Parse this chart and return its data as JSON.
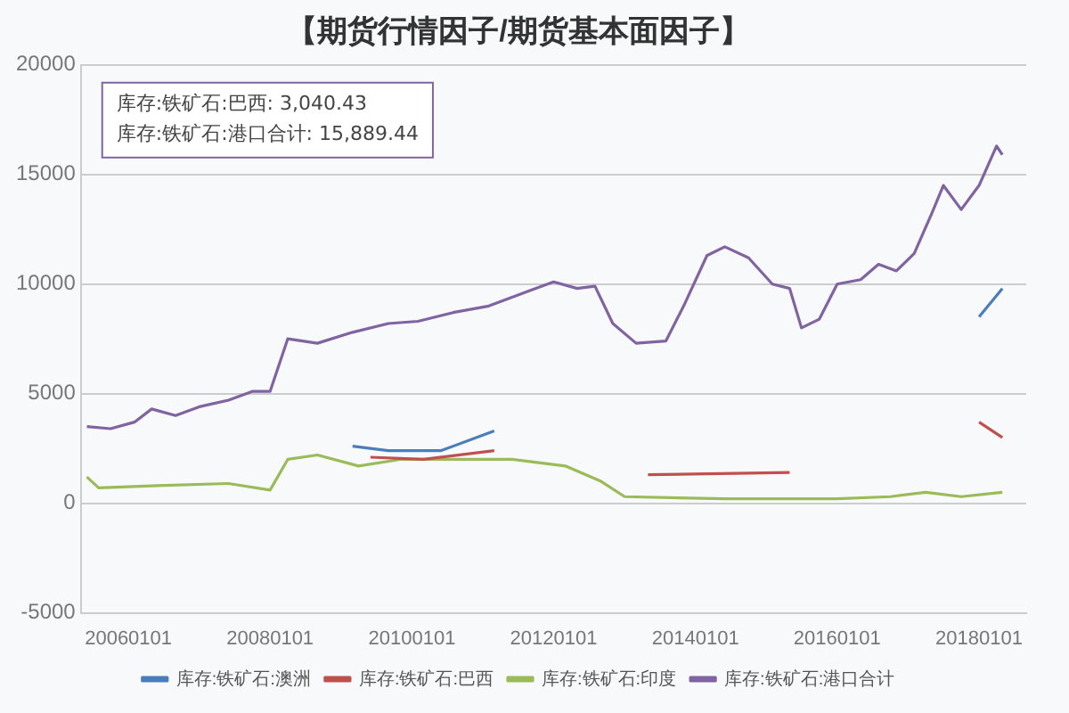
{
  "chart_data": {
    "type": "line",
    "title": "【期货行情因子/期货基本面因子】",
    "annotations": [
      "库存:铁矿石:巴西: 3,040.43",
      "库存:铁矿石:港口合计: 15,889.44"
    ],
    "xlim": [
      "2005-05-01",
      "2018-09-01"
    ],
    "xticks": [
      {
        "value": "2006-01-01",
        "label": "20060101"
      },
      {
        "value": "2008-01-01",
        "label": "20080101"
      },
      {
        "value": "2010-01-01",
        "label": "20100101"
      },
      {
        "value": "2012-01-01",
        "label": "20120101"
      },
      {
        "value": "2014-01-01",
        "label": "20140101"
      },
      {
        "value": "2016-01-01",
        "label": "20160101"
      },
      {
        "value": "2018-01-01",
        "label": "20180101"
      }
    ],
    "ylim": [
      -5000,
      20000
    ],
    "yticks": [
      -5000,
      0,
      5000,
      10000,
      15000,
      20000
    ],
    "grid": "y",
    "legend": "bottom",
    "line_style": "solid",
    "series": [
      {
        "name": "库存:铁矿石:澳洲",
        "color": "#4a7ebb",
        "x": [
          "2009-03",
          "2009-09",
          "2010-06",
          "2011-03",
          "2011-06",
          "2017-12",
          "2018-01",
          "2018-05"
        ],
        "values": [
          2600,
          2400,
          2400,
          3300,
          null,
          null,
          8500,
          9800
        ]
      },
      {
        "name": "库存:铁矿石:巴西",
        "color": "#c0504d",
        "x": [
          "2009-06",
          "2010-03",
          "2011-03",
          "2012-06",
          "2013-05",
          "2015-05",
          "2016-06",
          "2018-01",
          "2018-05"
        ],
        "values": [
          2100,
          2000,
          2400,
          null,
          1300,
          1400,
          null,
          3700,
          3000
        ]
      },
      {
        "name": "库存:铁矿石:印度",
        "color": "#9bbb59",
        "x": [
          "2005-06",
          "2005-08",
          "2006-06",
          "2007-06",
          "2008-01",
          "2008-04",
          "2008-09",
          "2009-04",
          "2009-11",
          "2011-06",
          "2012-03",
          "2012-09",
          "2013-01",
          "2014-06",
          "2016-01",
          "2016-10",
          "2017-04",
          "2017-10",
          "2018-05"
        ],
        "values": [
          1200,
          700,
          800,
          900,
          600,
          2000,
          2200,
          1700,
          2000,
          2000,
          1700,
          1000,
          300,
          200,
          200,
          300,
          500,
          300,
          500
        ]
      },
      {
        "name": "库存:铁矿石:港口合计",
        "color": "#8064a2",
        "x": [
          "2005-06",
          "2005-10",
          "2006-02",
          "2006-05",
          "2006-09",
          "2007-01",
          "2007-06",
          "2007-10",
          "2008-01",
          "2008-04",
          "2008-09",
          "2009-03",
          "2009-09",
          "2010-02",
          "2010-08",
          "2011-02",
          "2011-06",
          "2011-09",
          "2012-01",
          "2012-05",
          "2012-08",
          "2012-11",
          "2013-03",
          "2013-08",
          "2013-11",
          "2014-03",
          "2014-06",
          "2014-10",
          "2015-02",
          "2015-05",
          "2015-07",
          "2015-10",
          "2016-01",
          "2016-05",
          "2016-08",
          "2016-11",
          "2017-02",
          "2017-05",
          "2017-07",
          "2017-10",
          "2018-01",
          "2018-04",
          "2018-05"
        ],
        "values": [
          3500,
          3400,
          3700,
          4300,
          4000,
          4400,
          4700,
          5100,
          5100,
          7500,
          7300,
          7800,
          8200,
          8300,
          8700,
          9000,
          9400,
          9700,
          10100,
          9800,
          9900,
          8200,
          7300,
          7400,
          9000,
          11300,
          11700,
          11200,
          10000,
          9800,
          8000,
          8400,
          10000,
          10200,
          10900,
          10600,
          11400,
          13200,
          14500,
          13400,
          14500,
          16300,
          15900
        ]
      }
    ]
  }
}
